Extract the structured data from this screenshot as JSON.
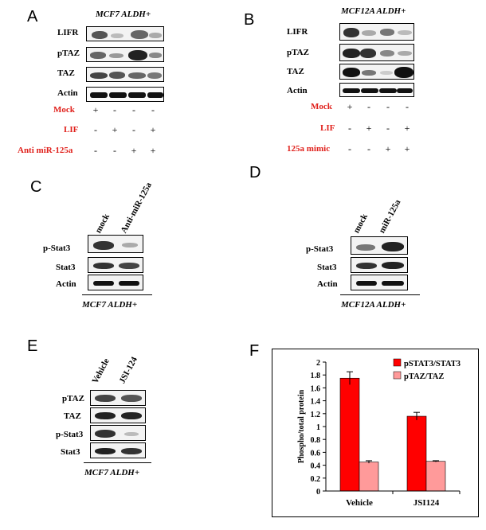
{
  "panel_a": {
    "letter": "A",
    "title": "MCF7 ALDH+",
    "rows": [
      "LIFR",
      "pTAZ",
      "TAZ",
      "Actin"
    ],
    "conditions": [
      {
        "label": "Mock",
        "signs": [
          "+",
          "-",
          "-",
          "-"
        ]
      },
      {
        "label": "LIF",
        "signs": [
          "-",
          "+",
          "-",
          "+"
        ]
      },
      {
        "label": "Anti miR-125a",
        "signs": [
          "-",
          "-",
          "+",
          "+"
        ]
      }
    ]
  },
  "panel_b": {
    "letter": "B",
    "title": "MCF12A ALDH+",
    "rows": [
      "LIFR",
      "pTAZ",
      "TAZ",
      "Actin"
    ],
    "conditions": [
      {
        "label": "Mock",
        "signs": [
          "+",
          "-",
          "-",
          "-"
        ]
      },
      {
        "label": "LIF",
        "signs": [
          "-",
          "+",
          "-",
          "+"
        ]
      },
      {
        "label": "125a mimic",
        "signs": [
          "-",
          "-",
          "+",
          "+"
        ]
      }
    ]
  },
  "panel_c": {
    "letter": "C",
    "lanes": [
      "mock",
      "Anti-miR-125a"
    ],
    "rows": [
      "p-Stat3",
      "Stat3",
      "Actin"
    ],
    "caption": "MCF7 ALDH+"
  },
  "panel_d": {
    "letter": "D",
    "lanes": [
      "mock",
      "miR-125a"
    ],
    "rows": [
      "p-Stat3",
      "Stat3",
      "Actin"
    ],
    "caption": "MCF12A ALDH+"
  },
  "panel_e": {
    "letter": "E",
    "lanes": [
      "Vehicle",
      "JSI-124"
    ],
    "rows": [
      "pTAZ",
      "TAZ",
      "p-Stat3",
      "Stat3"
    ],
    "caption": "MCF7 ALDH+"
  },
  "panel_f": {
    "letter": "F"
  },
  "chart_data": {
    "type": "bar",
    "categories": [
      "Vehicle",
      "JSI124"
    ],
    "series": [
      {
        "name": "pSTAT3/STAT3",
        "values": [
          1.75,
          1.16
        ],
        "errors": [
          0.1,
          0.06
        ],
        "color": "#ff0000"
      },
      {
        "name": "pTAZ/TAZ",
        "values": [
          0.45,
          0.46
        ],
        "errors": [
          0.02,
          0.01
        ],
        "color": "#ff9a9a"
      }
    ],
    "ylabel": "Phospho/total protein",
    "ylim": [
      0,
      2
    ],
    "yticks": [
      "0",
      "0.2",
      "0.4",
      "0.6",
      "0.8",
      "1",
      "1.2",
      "1.4",
      "1.6",
      "1.8",
      "2"
    ],
    "legend": "top-right",
    "grid": false
  }
}
